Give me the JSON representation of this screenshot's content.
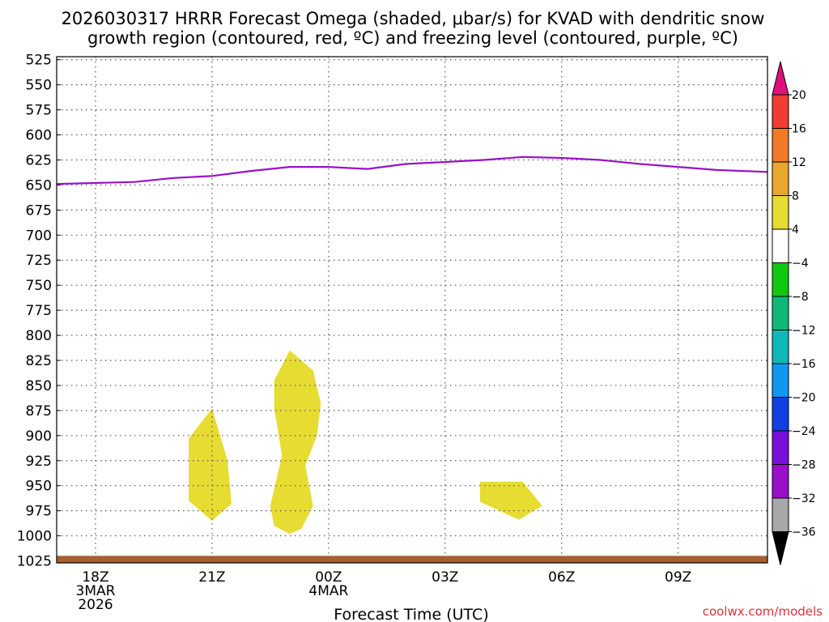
{
  "chart_data": {
    "type": "contour",
    "title_line1": "2026030317 HRRR Forecast Omega (shaded, μbar/s) for KVAD with dendritic snow",
    "title_line2": "growth region (contoured, red, ºC) and freezing level (contoured, purple, ºC)",
    "xlabel": "Forecast Time (UTC)",
    "credit": "coolwx.com/models",
    "x_range_hours": [
      -1.0,
      17.3
    ],
    "y_range_hpa": [
      522,
      1027
    ],
    "y_ticks": [
      "525",
      "550",
      "575",
      "600",
      "625",
      "650",
      "675",
      "700",
      "725",
      "750",
      "775",
      "800",
      "825",
      "850",
      "875",
      "900",
      "925",
      "950",
      "975",
      "1000",
      "1025"
    ],
    "x_ticks": [
      {
        "hour": 0,
        "lines": [
          "18Z",
          "3MAR",
          "2026"
        ]
      },
      {
        "hour": 3,
        "lines": [
          "21Z"
        ]
      },
      {
        "hour": 6,
        "lines": [
          "00Z",
          "4MAR"
        ]
      },
      {
        "hour": 9,
        "lines": [
          "03Z"
        ]
      },
      {
        "hour": 12,
        "lines": [
          "06Z"
        ]
      },
      {
        "hour": 15,
        "lines": [
          "09Z"
        ]
      }
    ],
    "freezing_level": {
      "color": "#9a10c8",
      "points": [
        [
          -1.0,
          649
        ],
        [
          0.0,
          648
        ],
        [
          1.0,
          647
        ],
        [
          2.0,
          643
        ],
        [
          3.0,
          641
        ],
        [
          4.0,
          636
        ],
        [
          5.0,
          632
        ],
        [
          6.0,
          632
        ],
        [
          7.0,
          634
        ],
        [
          8.0,
          629
        ],
        [
          9.0,
          627
        ],
        [
          10.0,
          625
        ],
        [
          11.0,
          622
        ],
        [
          12.0,
          623
        ],
        [
          13.0,
          625
        ],
        [
          14.0,
          629
        ],
        [
          15.0,
          632
        ],
        [
          16.0,
          635
        ],
        [
          17.3,
          637
        ]
      ]
    },
    "omega_regions": [
      {
        "value_range": "4 to 8",
        "color": "#e6dc32",
        "points": [
          [
            3.0,
            873
          ],
          [
            2.4,
            903
          ],
          [
            2.4,
            965
          ],
          [
            3.0,
            985
          ],
          [
            3.5,
            968
          ],
          [
            3.4,
            925
          ]
        ]
      },
      {
        "value_range": "4 to 8",
        "color": "#e6dc32",
        "points": [
          [
            5.0,
            815
          ],
          [
            4.6,
            845
          ],
          [
            4.6,
            872
          ],
          [
            4.8,
            920
          ],
          [
            4.5,
            970
          ],
          [
            4.6,
            990
          ],
          [
            5.0,
            998
          ],
          [
            5.3,
            993
          ],
          [
            5.6,
            970
          ],
          [
            5.4,
            930
          ],
          [
            5.7,
            900
          ],
          [
            5.8,
            868
          ],
          [
            5.6,
            835
          ]
        ]
      },
      {
        "value_range": "4 to 8",
        "color": "#e6dc32",
        "points": [
          [
            9.9,
            946
          ],
          [
            9.9,
            966
          ],
          [
            10.9,
            984
          ],
          [
            11.5,
            970
          ],
          [
            11.0,
            946
          ]
        ]
      }
    ],
    "ground_color": "#a65e32",
    "ground_top_hpa": [
      [
        -1.0,
        1020
      ],
      [
        17.3,
        1020
      ]
    ],
    "colorbar": {
      "tick_labels": [
        "20",
        "16",
        "12",
        "8",
        "4",
        "−4",
        "−8",
        "−12",
        "−16",
        "−20",
        "−24",
        "−28",
        "−32",
        "−36"
      ],
      "colors": [
        "#e0107a",
        "#f03c32",
        "#f07a28",
        "#e8a830",
        "#e6dc32",
        "#ffffff",
        "#10c810",
        "#10b878",
        "#10b8b8",
        "#1098f0",
        "#1040e0",
        "#7810d8",
        "#9a10c8",
        "#a8a8a8",
        "#000000"
      ]
    }
  }
}
